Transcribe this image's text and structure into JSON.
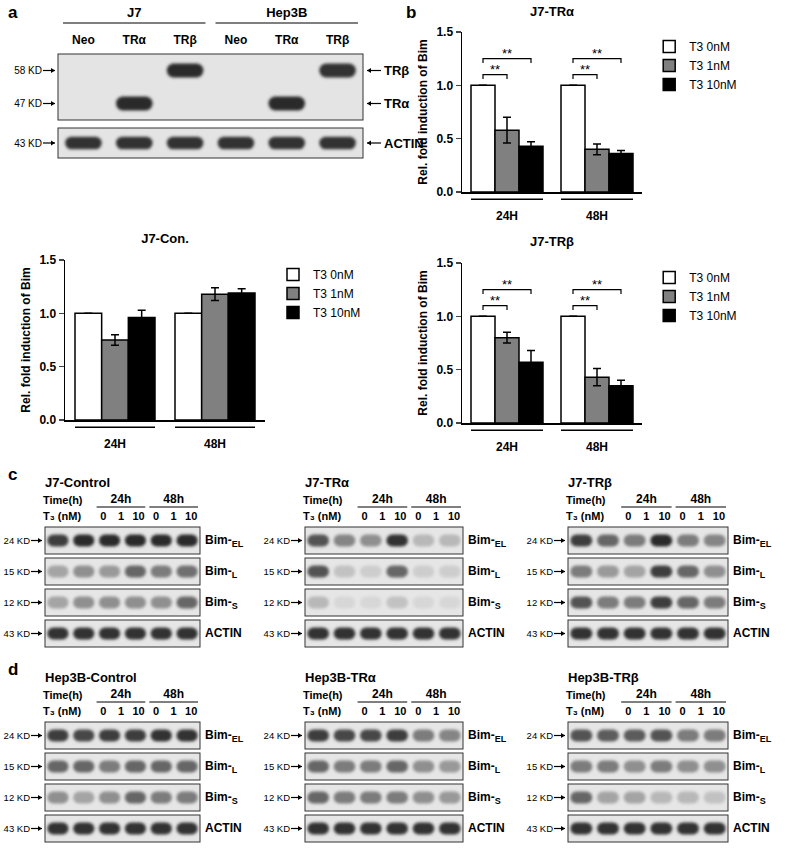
{
  "panel_labels": [
    "a",
    "b",
    "c",
    "d"
  ],
  "chart_data": [
    {
      "type": "bar",
      "title": "J7-Con.",
      "categories": [
        "24H",
        "48H"
      ],
      "ylabel": "Rel. fold induction of Bim",
      "ylim": [
        0,
        1.5
      ],
      "yticks": [
        {
          "value": 0,
          "label": "0.0"
        },
        0.5,
        {
          "value": 1,
          "label": "1.0"
        },
        1.5
      ],
      "grid": false,
      "legend": "right",
      "series": [
        {
          "name": "T3 0nM",
          "color": "#ffffff",
          "values": [
            1.0,
            1.0
          ],
          "errors": [
            null,
            null
          ]
        },
        {
          "name": "T3 1nM",
          "color": "#808080",
          "values": [
            0.75,
            1.18
          ],
          "errors": [
            0.05,
            0.06
          ]
        },
        {
          "name": "T3 10nM",
          "color": "#000000",
          "values": [
            0.96,
            1.19
          ],
          "errors": [
            0.07,
            0.04
          ]
        }
      ],
      "significance": []
    },
    {
      "type": "bar",
      "title": "J7-TRα",
      "categories": [
        "24H",
        "48H"
      ],
      "ylabel": "Rel. fold induction of Bim",
      "ylim": [
        0,
        1.5
      ],
      "yticks": [
        {
          "value": 0,
          "label": "0.0"
        },
        0.5,
        {
          "value": 1,
          "label": "1.0"
        },
        1.5
      ],
      "grid": false,
      "legend": "right",
      "series": [
        {
          "name": "T3 0nM",
          "color": "#ffffff",
          "values": [
            1.0,
            1.0
          ],
          "errors": [
            null,
            null
          ]
        },
        {
          "name": "T3 1nM",
          "color": "#808080",
          "values": [
            0.58,
            0.4
          ],
          "errors": [
            0.12,
            0.05
          ]
        },
        {
          "name": "T3 10nM",
          "color": "#000000",
          "values": [
            0.43,
            0.36
          ],
          "errors": [
            0.04,
            0.03
          ]
        }
      ],
      "significance": [
        {
          "category": "24H",
          "from": "T3 0nM",
          "to": "T3 1nM",
          "label": "**"
        },
        {
          "category": "24H",
          "from": "T3 0nM",
          "to": "T3 10nM",
          "label": "**"
        },
        {
          "category": "48H",
          "from": "T3 0nM",
          "to": "T3 1nM",
          "label": "**"
        },
        {
          "category": "48H",
          "from": "T3 0nM",
          "to": "T3 10nM",
          "label": "**"
        }
      ]
    },
    {
      "type": "bar",
      "title": "J7-TRβ",
      "categories": [
        "24H",
        "48H"
      ],
      "ylabel": "Rel. fold induction of Bim",
      "ylim": [
        0,
        1.5
      ],
      "yticks": [
        {
          "value": 0,
          "label": "0.0"
        },
        0.5,
        {
          "value": 1,
          "label": "1.0"
        },
        1.5
      ],
      "grid": false,
      "legend": "right",
      "series": [
        {
          "name": "T3 0nM",
          "color": "#ffffff",
          "values": [
            1.0,
            1.0
          ],
          "errors": [
            null,
            null
          ]
        },
        {
          "name": "T3 1nM",
          "color": "#808080",
          "values": [
            0.8,
            0.43
          ],
          "errors": [
            0.05,
            0.08
          ]
        },
        {
          "name": "T3 10nM",
          "color": "#000000",
          "values": [
            0.57,
            0.35
          ],
          "errors": [
            0.11,
            0.05
          ]
        }
      ],
      "significance": [
        {
          "category": "24H",
          "from": "T3 0nM",
          "to": "T3 1nM",
          "label": "**"
        },
        {
          "category": "24H",
          "from": "T3 0nM",
          "to": "T3 10nM",
          "label": "**"
        },
        {
          "category": "48H",
          "from": "T3 0nM",
          "to": "T3 1nM",
          "label": "**"
        },
        {
          "category": "48H",
          "from": "T3 0nM",
          "to": "T3 10nM",
          "label": "**"
        }
      ]
    }
  ],
  "western_a": {
    "headers": [
      {
        "text": "J7",
        "lanes": 3
      },
      {
        "text": "Hep3B",
        "lanes": 3
      }
    ],
    "lanes": [
      "Neo",
      "TRα",
      "TRβ",
      "Neo",
      "TRα",
      "TRβ"
    ],
    "blots": [
      {
        "rows": [
          {
            "mw": "58 KD",
            "label": "TRβ",
            "intensity": [
              0,
              0,
              0.9,
              0,
              0,
              0.85
            ]
          },
          {
            "mw": "47 KD",
            "label": "TRα",
            "intensity": [
              0,
              0.9,
              0,
              0,
              0.9,
              0
            ]
          }
        ]
      },
      {
        "rows": [
          {
            "mw": "43 KD",
            "label": "ACTIN",
            "intensity": [
              0.85,
              0.85,
              0.85,
              0.85,
              0.85,
              0.85
            ]
          }
        ]
      }
    ]
  },
  "western_c": {
    "panels": [
      {
        "title": "J7-Control",
        "time_label": "Time(h)",
        "times": [
          "24h",
          "48h"
        ],
        "dose_label": "T₃ (nM)",
        "doses": [
          0,
          1,
          10,
          0,
          1,
          10
        ],
        "rows": [
          {
            "mw": "24 KD",
            "label": "Bim-EL",
            "intensity": [
              0.8,
              0.9,
              0.9,
              0.9,
              0.9,
              0.9
            ]
          },
          {
            "mw": "15 KD",
            "label": "Bim-L",
            "intensity": [
              0.3,
              0.4,
              0.35,
              0.6,
              0.5,
              0.55
            ]
          },
          {
            "mw": "12 KD",
            "label": "Bim-S",
            "intensity": [
              0.3,
              0.4,
              0.4,
              0.4,
              0.4,
              0.6
            ]
          },
          {
            "mw": "43 KD",
            "label": "ACTIN",
            "intensity": [
              0.85,
              0.85,
              0.85,
              0.85,
              0.85,
              0.85
            ]
          }
        ]
      },
      {
        "title": "J7-TRα",
        "time_label": "Time(h)",
        "times": [
          "24h",
          "48h"
        ],
        "dose_label": "T₃ (nM)",
        "doses": [
          0,
          1,
          10,
          0,
          1,
          10
        ],
        "rows": [
          {
            "mw": "24 KD",
            "label": "Bim-EL",
            "intensity": [
              0.7,
              0.45,
              0.4,
              0.85,
              0.2,
              0.2
            ]
          },
          {
            "mw": "15 KD",
            "label": "Bim-L",
            "intensity": [
              0.7,
              0.15,
              0.1,
              0.6,
              0.1,
              0.1
            ]
          },
          {
            "mw": "12 KD",
            "label": "Bim-S",
            "intensity": [
              0.2,
              0.05,
              0.05,
              0.15,
              0.05,
              0.05
            ]
          },
          {
            "mw": "43 KD",
            "label": "ACTIN",
            "intensity": [
              0.85,
              0.85,
              0.85,
              0.85,
              0.85,
              0.85
            ]
          }
        ]
      },
      {
        "title": "J7-TRβ",
        "time_label": "Time(h)",
        "times": [
          "24h",
          "48h"
        ],
        "dose_label": "T₃ (nM)",
        "doses": [
          0,
          1,
          10,
          0,
          1,
          10
        ],
        "rows": [
          {
            "mw": "24 KD",
            "label": "Bim-EL",
            "intensity": [
              0.8,
              0.6,
              0.5,
              0.9,
              0.5,
              0.45
            ]
          },
          {
            "mw": "15 KD",
            "label": "Bim-L",
            "intensity": [
              0.5,
              0.35,
              0.3,
              0.8,
              0.6,
              0.4
            ]
          },
          {
            "mw": "12 KD",
            "label": "Bim-S",
            "intensity": [
              0.7,
              0.5,
              0.5,
              0.8,
              0.6,
              0.5
            ]
          },
          {
            "mw": "43 KD",
            "label": "ACTIN",
            "intensity": [
              0.85,
              0.85,
              0.85,
              0.85,
              0.85,
              0.85
            ]
          }
        ]
      }
    ]
  },
  "western_d": {
    "panels": [
      {
        "title": "Hep3B-Control",
        "time_label": "Time(h)",
        "times": [
          "24h",
          "48h"
        ],
        "dose_label": "T₃ (nM)",
        "doses": [
          0,
          1,
          10,
          0,
          1,
          10
        ],
        "rows": [
          {
            "mw": "24 KD",
            "label": "Bim-EL",
            "intensity": [
              0.8,
              0.75,
              0.8,
              0.8,
              0.85,
              0.85
            ]
          },
          {
            "mw": "15 KD",
            "label": "Bim-L",
            "intensity": [
              0.6,
              0.6,
              0.5,
              0.6,
              0.6,
              0.6
            ]
          },
          {
            "mw": "12 KD",
            "label": "Bim-S",
            "intensity": [
              0.4,
              0.3,
              0.4,
              0.6,
              0.5,
              0.5
            ]
          },
          {
            "mw": "43 KD",
            "label": "ACTIN",
            "intensity": [
              0.85,
              0.85,
              0.85,
              0.85,
              0.85,
              0.85
            ]
          }
        ]
      },
      {
        "title": "Hep3B-TRα",
        "time_label": "Time(h)",
        "times": [
          "24h",
          "48h"
        ],
        "dose_label": "T₃ (nM)",
        "doses": [
          0,
          1,
          10,
          0,
          1,
          10
        ],
        "rows": [
          {
            "mw": "24 KD",
            "label": "Bim-EL",
            "intensity": [
              0.8,
              0.75,
              0.75,
              0.8,
              0.5,
              0.45
            ]
          },
          {
            "mw": "15 KD",
            "label": "Bim-L",
            "intensity": [
              0.6,
              0.5,
              0.5,
              0.6,
              0.4,
              0.35
            ]
          },
          {
            "mw": "12 KD",
            "label": "Bim-S",
            "intensity": [
              0.6,
              0.5,
              0.5,
              0.5,
              0.4,
              0.35
            ]
          },
          {
            "mw": "43 KD",
            "label": "ACTIN",
            "intensity": [
              0.85,
              0.85,
              0.85,
              0.85,
              0.85,
              0.85
            ]
          }
        ]
      },
      {
        "title": "Hep3B-TRβ",
        "time_label": "Time(h)",
        "times": [
          "24h",
          "48h"
        ],
        "dose_label": "T₃ (nM)",
        "doses": [
          0,
          1,
          10,
          0,
          1,
          10
        ],
        "rows": [
          {
            "mw": "24 KD",
            "label": "Bim-EL",
            "intensity": [
              0.7,
              0.65,
              0.65,
              0.7,
              0.5,
              0.5
            ]
          },
          {
            "mw": "15 KD",
            "label": "Bim-L",
            "intensity": [
              0.5,
              0.5,
              0.4,
              0.5,
              0.4,
              0.4
            ]
          },
          {
            "mw": "12 KD",
            "label": "Bim-S",
            "intensity": [
              0.6,
              0.3,
              0.3,
              0.2,
              0.2,
              0.15
            ]
          },
          {
            "mw": "43 KD",
            "label": "ACTIN",
            "intensity": [
              0.85,
              0.85,
              0.85,
              0.85,
              0.85,
              0.85
            ]
          }
        ]
      }
    ]
  }
}
